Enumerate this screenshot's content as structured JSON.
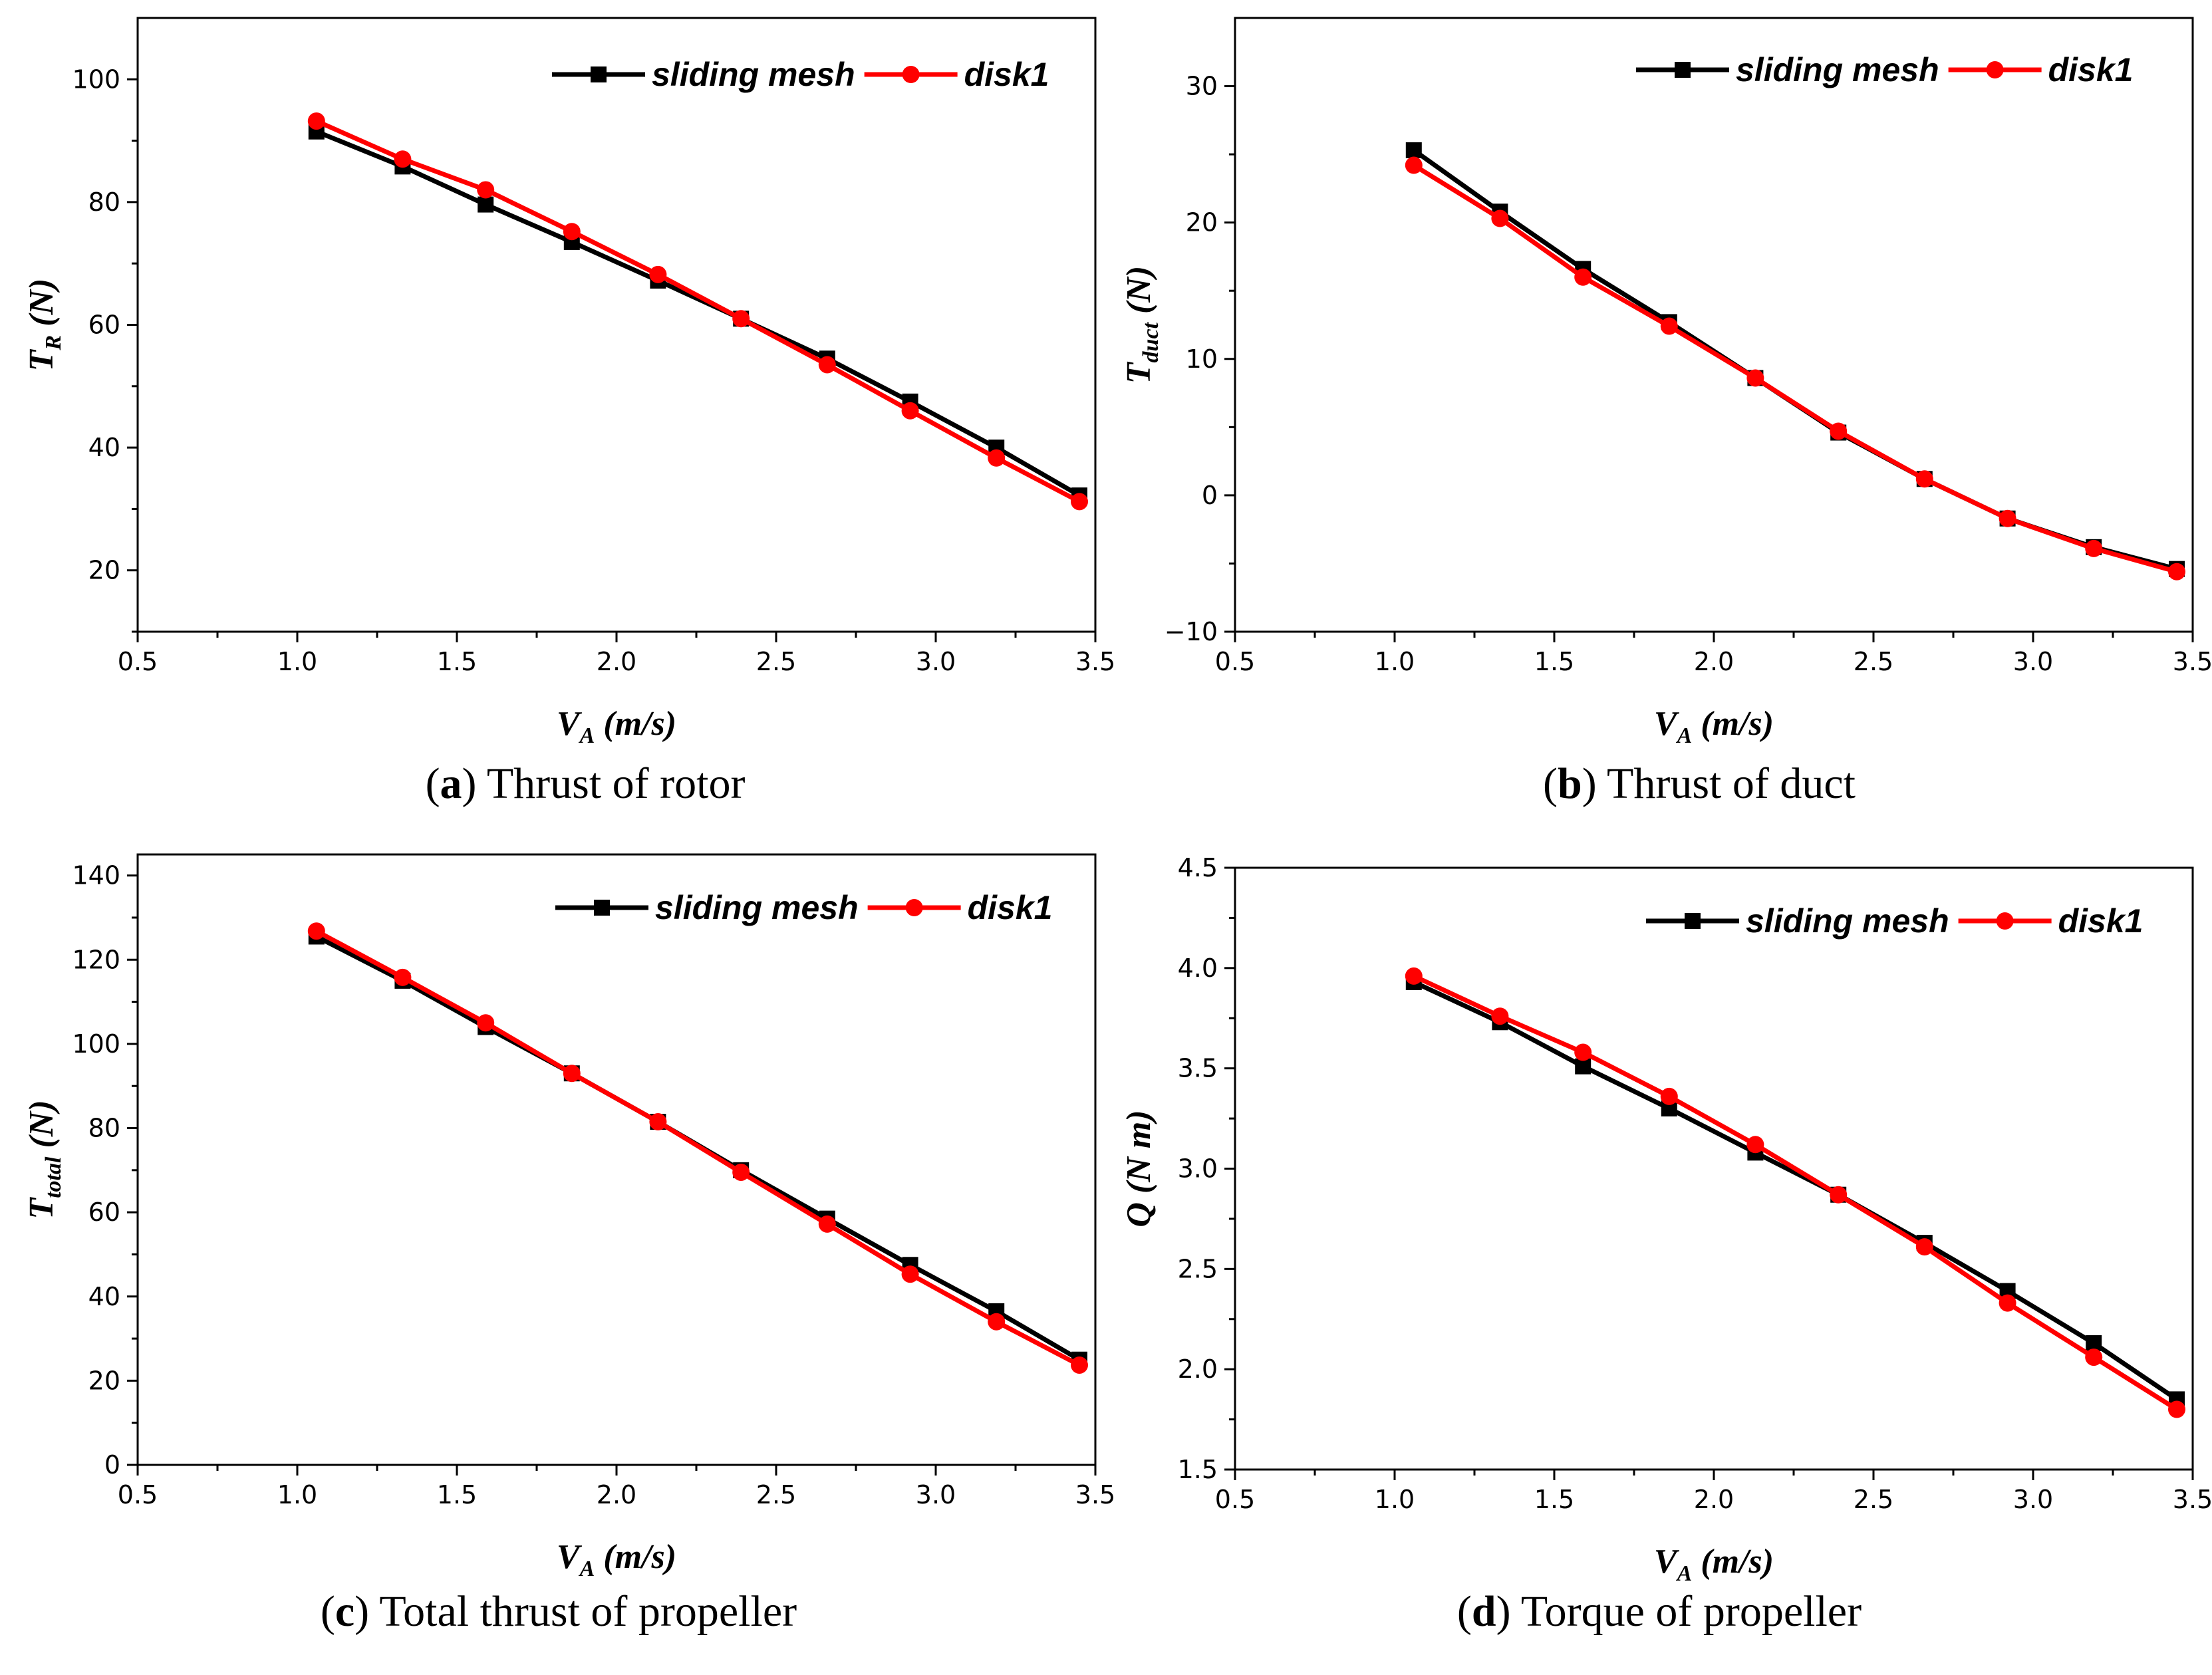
{
  "chart_data": [
    {
      "type": "line",
      "panel": "a",
      "caption_letter": "a",
      "caption_text": "Thrust of rotor",
      "xlabel_main": "V",
      "xlabel_sub": "A",
      "xlabel_unit": "(m/s)",
      "ylabel_main": "T",
      "ylabel_sub": "R",
      "ylabel_unit": "(N)",
      "xlim": [
        0.5,
        3.5
      ],
      "ylim": [
        10,
        110
      ],
      "xticks": [
        "0.5",
        "1.0",
        "1.5",
        "2.0",
        "2.5",
        "3.0",
        "3.5"
      ],
      "xtick_values": [
        0.5,
        1.0,
        1.5,
        2.0,
        2.5,
        3.0,
        3.5
      ],
      "yticks": [
        "20",
        "40",
        "60",
        "80",
        "100"
      ],
      "ytick_values": [
        20,
        40,
        60,
        80,
        100
      ],
      "legend_position": "top-right",
      "x": [
        1.06,
        1.33,
        1.59,
        1.86,
        2.13,
        2.39,
        2.66,
        2.92,
        3.19,
        3.45
      ],
      "series": [
        {
          "name": "sliding mesh",
          "color": "#000000",
          "marker": "square",
          "values": [
            91.5,
            85.8,
            79.6,
            73.5,
            67.2,
            61.0,
            54.5,
            47.5,
            40.0,
            32.2
          ]
        },
        {
          "name": "disk1",
          "color": "#ff0000",
          "marker": "circle",
          "values": [
            93.2,
            87.0,
            82.0,
            75.2,
            68.2,
            61.0,
            53.5,
            46.0,
            38.3,
            31.2
          ]
        }
      ]
    },
    {
      "type": "line",
      "panel": "b",
      "caption_letter": "b",
      "caption_text": "Thrust of duct",
      "xlabel_main": "V",
      "xlabel_sub": "A",
      "xlabel_unit": "(m/s)",
      "ylabel_main": "T",
      "ylabel_sub": "duct",
      "ylabel_unit": "(N)",
      "xlim": [
        0.5,
        3.5
      ],
      "ylim": [
        -10,
        35
      ],
      "xticks": [
        "0.5",
        "1.0",
        "1.5",
        "2.0",
        "2.5",
        "3.0",
        "3.5"
      ],
      "xtick_values": [
        0.5,
        1.0,
        1.5,
        2.0,
        2.5,
        3.0,
        3.5
      ],
      "yticks": [
        "−10",
        "0",
        "10",
        "20",
        "30"
      ],
      "ytick_values": [
        -10,
        0,
        10,
        20,
        30
      ],
      "legend_position": "top-right",
      "x": [
        1.06,
        1.33,
        1.59,
        1.86,
        2.13,
        2.39,
        2.66,
        2.92,
        3.19,
        3.45
      ],
      "series": [
        {
          "name": "sliding mesh",
          "color": "#000000",
          "marker": "square",
          "values": [
            25.3,
            20.8,
            16.6,
            12.7,
            8.6,
            4.6,
            1.2,
            -1.7,
            -3.8,
            -5.4
          ]
        },
        {
          "name": "disk1",
          "color": "#ff0000",
          "marker": "circle",
          "values": [
            24.2,
            20.3,
            16.0,
            12.4,
            8.6,
            4.7,
            1.2,
            -1.7,
            -3.9,
            -5.6
          ]
        }
      ]
    },
    {
      "type": "line",
      "panel": "c",
      "caption_letter": "c",
      "caption_text": "Total thrust of propeller",
      "xlabel_main": "V",
      "xlabel_sub": "A",
      "xlabel_unit": "(m/s)",
      "ylabel_main": "T",
      "ylabel_sub": "total",
      "ylabel_unit": "(N)",
      "xlim": [
        0.5,
        3.5
      ],
      "ylim": [
        0,
        145
      ],
      "xticks": [
        "0.5",
        "1.0",
        "1.5",
        "2.0",
        "2.5",
        "3.0",
        "3.5"
      ],
      "xtick_values": [
        0.5,
        1.0,
        1.5,
        2.0,
        2.5,
        3.0,
        3.5
      ],
      "yticks": [
        "0",
        "20",
        "40",
        "60",
        "80",
        "100",
        "120",
        "140"
      ],
      "ytick_values": [
        0,
        20,
        40,
        60,
        80,
        100,
        120,
        140
      ],
      "legend_position": "top-right",
      "x": [
        1.06,
        1.33,
        1.59,
        1.86,
        2.13,
        2.39,
        2.66,
        2.92,
        3.19,
        3.45
      ],
      "series": [
        {
          "name": "sliding mesh",
          "color": "#000000",
          "marker": "square",
          "values": [
            125.5,
            115.0,
            104.0,
            93.0,
            81.5,
            70.0,
            58.5,
            47.5,
            36.5,
            25.0
          ]
        },
        {
          "name": "disk1",
          "color": "#ff0000",
          "marker": "circle",
          "values": [
            126.8,
            115.8,
            105.0,
            93.0,
            81.5,
            69.5,
            57.2,
            45.3,
            34.0,
            23.7
          ]
        }
      ]
    },
    {
      "type": "line",
      "panel": "d",
      "caption_letter": "d",
      "caption_text": "Torque of propeller",
      "xlabel_main": "V",
      "xlabel_sub": "A",
      "xlabel_unit": "(m/s)",
      "ylabel_main": "Q",
      "ylabel_sub": "",
      "ylabel_unit": "(N m)",
      "xlim": [
        0.5,
        3.5
      ],
      "ylim": [
        1.5,
        4.5
      ],
      "xticks": [
        "0.5",
        "1.0",
        "1.5",
        "2.0",
        "2.5",
        "3.0",
        "3.5"
      ],
      "xtick_values": [
        0.5,
        1.0,
        1.5,
        2.0,
        2.5,
        3.0,
        3.5
      ],
      "yticks": [
        "1.5",
        "2.0",
        "2.5",
        "3.0",
        "3.5",
        "4.0",
        "4.5"
      ],
      "ytick_values": [
        1.5,
        2.0,
        2.5,
        3.0,
        3.5,
        4.0,
        4.5
      ],
      "legend_position": "top-right",
      "x": [
        1.06,
        1.33,
        1.59,
        1.86,
        2.13,
        2.39,
        2.66,
        2.92,
        3.19,
        3.45
      ],
      "series": [
        {
          "name": "sliding mesh",
          "color": "#000000",
          "marker": "square",
          "values": [
            3.93,
            3.73,
            3.51,
            3.3,
            3.08,
            2.87,
            2.63,
            2.39,
            2.13,
            1.85
          ]
        },
        {
          "name": "disk1",
          "color": "#ff0000",
          "marker": "circle",
          "values": [
            3.96,
            3.76,
            3.58,
            3.36,
            3.12,
            2.87,
            2.61,
            2.33,
            2.06,
            1.8
          ]
        }
      ]
    }
  ]
}
